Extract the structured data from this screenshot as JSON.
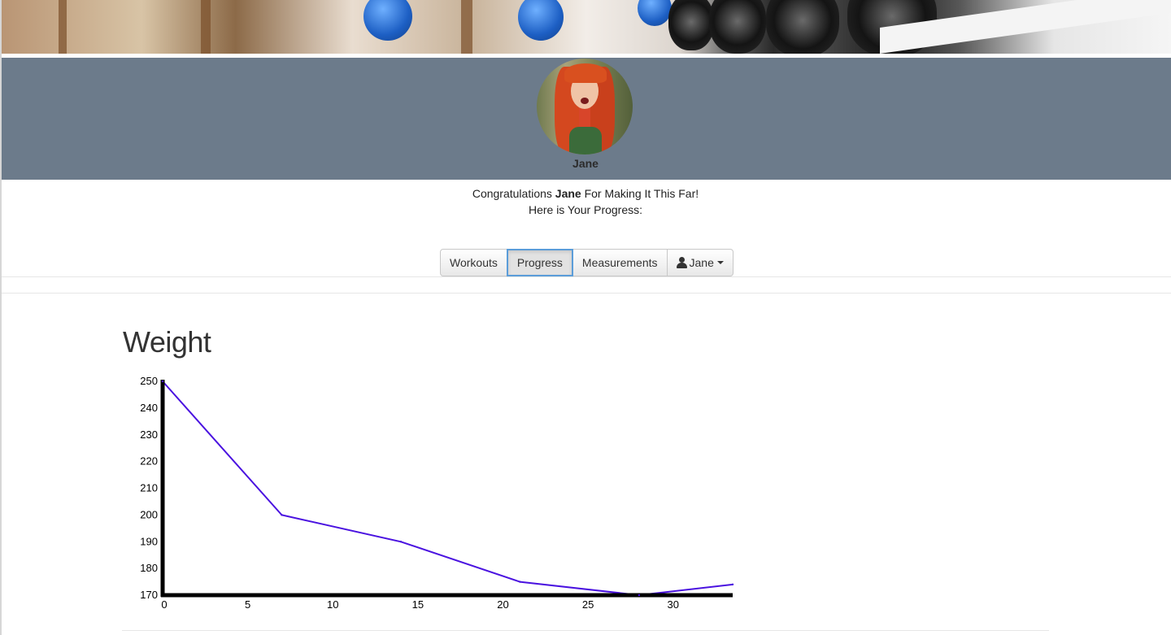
{
  "profile": {
    "name": "Jane"
  },
  "message": {
    "prefix": "Congratulations",
    "name": "Jane",
    "suffix": "For Making It This Far!",
    "line2": "Here is Your Progress:"
  },
  "nav": {
    "workouts": "Workouts",
    "progress": "Progress",
    "measurements": "Measurements",
    "user": "Jane",
    "active": "progress"
  },
  "icons": {
    "user": "user-icon",
    "dropdown": "caret-down-icon"
  },
  "colors": {
    "band": "#6c7b8b",
    "line": "#4a12e0",
    "active_border": "#5b9dd9"
  },
  "chart_data": {
    "type": "line",
    "title": "Weight",
    "x": [
      0,
      7,
      14,
      21,
      28,
      33.5
    ],
    "values": [
      250,
      200,
      190,
      175,
      170,
      174
    ],
    "xlim": [
      0,
      33.5
    ],
    "ylim": [
      170,
      250
    ],
    "xticks": [
      0,
      5,
      10,
      15,
      20,
      25,
      30
    ],
    "yticks": [
      170,
      180,
      190,
      200,
      210,
      220,
      230,
      240,
      250
    ],
    "grid": false,
    "xlabel": "",
    "ylabel": ""
  }
}
